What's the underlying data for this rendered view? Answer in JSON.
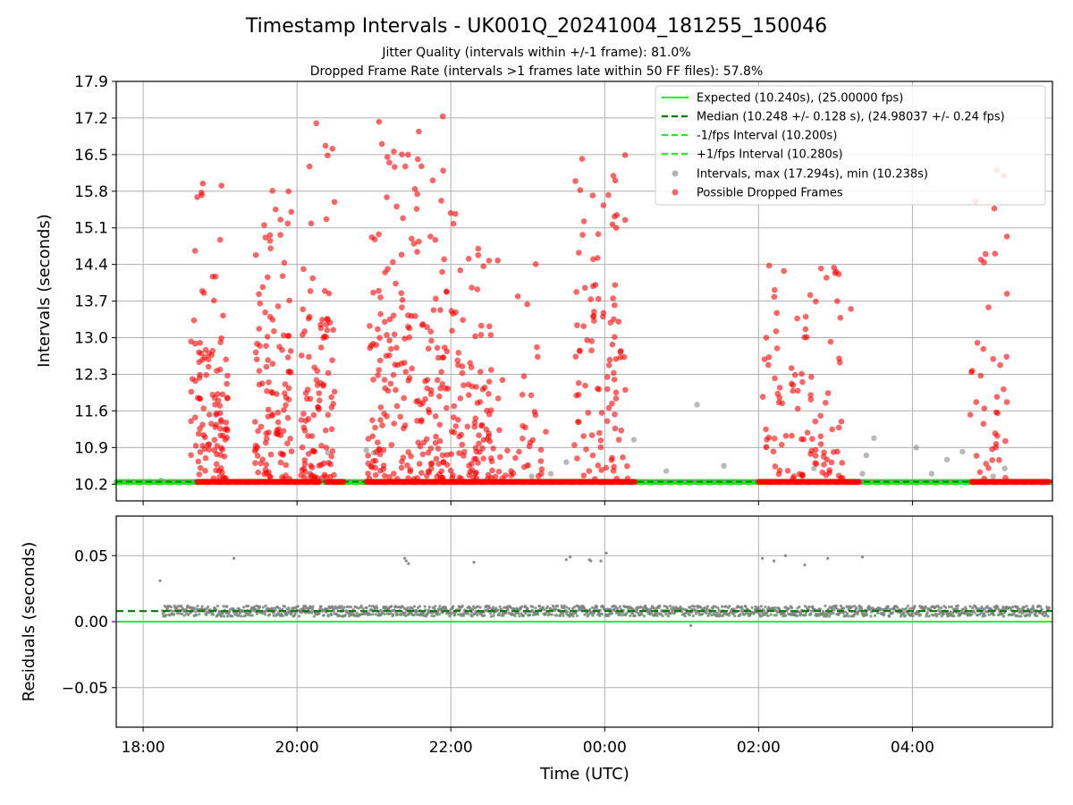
{
  "figure": {
    "title": "Timestamp Intervals - UK001Q_20241004_181255_150046",
    "subtitle_1": "Jitter Quality (intervals within +/-1 frame): 81.0%",
    "subtitle_2": "Dropped Frame Rate (intervals >1 frames late within 50 FF files): 57.8%"
  },
  "colors": {
    "expected": "#00ff00",
    "median": "#007a00",
    "intervals": "#808080",
    "dropped": "#ff0000",
    "grid": "#b0b0b0"
  },
  "chart_data": [
    {
      "type": "scatter",
      "name": "intervals",
      "ylabel": "Intervals (seconds)",
      "xlabel": "",
      "x_ticks": [
        "18:00",
        "20:00",
        "22:00",
        "00:00",
        "02:00",
        "04:00"
      ],
      "x_tick_hours": [
        18,
        20,
        22,
        24,
        26,
        28
      ],
      "xlim_hours": [
        17.65,
        29.82
      ],
      "y_ticks": [
        "10.2",
        "10.9",
        "11.6",
        "12.3",
        "13.0",
        "13.7",
        "14.4",
        "15.1",
        "15.8",
        "16.5",
        "17.2",
        "17.9"
      ],
      "ylim": [
        9.88,
        17.9
      ],
      "grid": true,
      "legend_position": "top-right",
      "legend": [
        "Expected (10.240s), (25.00000 fps)",
        "Median (10.248 +/- 0.128 s), (24.98037 +/- 0.24 fps)",
        "-1/fps Interval (10.200s)",
        "+1/fps Interval (10.280s)",
        "Intervals, max (17.294s), min (10.238s)",
        "Possible Dropped Frames"
      ],
      "lines": {
        "expected": 10.24,
        "median": 10.248,
        "minus_one_fps": 10.2,
        "plus_one_fps": 10.28
      },
      "baseline_value": 10.245,
      "baseline_intervals_hours": [
        [
          17.65,
          18.8
        ],
        [
          20.4,
          21.2
        ],
        [
          22.5,
          23.2
        ],
        [
          24.4,
          26.0
        ],
        [
          27.3,
          28.8
        ]
      ],
      "baseline_dropped_hours": [
        [
          18.7,
          20.3
        ],
        [
          20.38,
          20.62
        ],
        [
          20.9,
          24.4
        ],
        [
          26.0,
          27.32
        ],
        [
          28.77,
          29.78
        ]
      ],
      "grey_points": [
        [
          18.23,
          10.27
        ],
        [
          19.25,
          10.25
        ],
        [
          20.9,
          10.85
        ],
        [
          20.4,
          10.8
        ],
        [
          21.0,
          10.8
        ],
        [
          23.0,
          10.55
        ],
        [
          23.3,
          10.4
        ],
        [
          23.5,
          10.62
        ],
        [
          23.05,
          10.35
        ],
        [
          24.38,
          11.05
        ],
        [
          24.8,
          10.45
        ],
        [
          25.2,
          11.72
        ],
        [
          25.55,
          10.55
        ],
        [
          26.1,
          10.9
        ],
        [
          26.72,
          10.5
        ],
        [
          27.35,
          10.4
        ],
        [
          27.4,
          10.75
        ],
        [
          27.5,
          11.08
        ],
        [
          28.05,
          10.9
        ],
        [
          28.25,
          10.4
        ],
        [
          28.45,
          10.67
        ],
        [
          28.65,
          10.82
        ],
        [
          29.05,
          10.35
        ],
        [
          29.2,
          10.5
        ]
      ],
      "dropped_clusters": [
        {
          "start": 18.62,
          "end": 19.1,
          "n": 110,
          "median_ymax": 13.0,
          "ymax": 16.8
        },
        {
          "start": 19.45,
          "end": 19.93,
          "n": 110,
          "median_ymax": 13.2,
          "ymax": 15.9
        },
        {
          "start": 20.05,
          "end": 20.5,
          "n": 100,
          "median_ymax": 13.5,
          "ymax": 17.05
        },
        {
          "start": 20.92,
          "end": 22.1,
          "n": 230,
          "median_ymax": 13.6,
          "ymax": 17.25
        },
        {
          "start": 22.1,
          "end": 22.55,
          "n": 80,
          "median_ymax": 12.6,
          "ymax": 14.9
        },
        {
          "start": 22.55,
          "end": 23.25,
          "n": 40,
          "median_ymax": 12.2,
          "ymax": 14.5
        },
        {
          "start": 23.6,
          "end": 24.3,
          "n": 100,
          "median_ymax": 13.5,
          "ymax": 16.7
        },
        {
          "start": 26.05,
          "end": 26.7,
          "n": 60,
          "median_ymax": 12.3,
          "ymax": 14.4
        },
        {
          "start": 26.7,
          "end": 27.1,
          "n": 40,
          "median_ymax": 12.4,
          "ymax": 14.4
        },
        {
          "start": 28.75,
          "end": 29.25,
          "n": 40,
          "median_ymax": 12.5,
          "ymax": 16.2
        }
      ],
      "dropped_outliers": [
        [
          29.1,
          16.2
        ],
        [
          28.95,
          14.6
        ],
        [
          27.2,
          13.55
        ],
        [
          24.15,
          15.1
        ],
        [
          23.85,
          14.5
        ],
        [
          26.1,
          13.0
        ],
        [
          21.2,
          16.35
        ],
        [
          20.25,
          17.1
        ]
      ]
    },
    {
      "type": "scatter",
      "name": "residuals",
      "ylabel": "Residuals (seconds)",
      "xlabel": "Time (UTC)",
      "x_ticks": [
        "18:00",
        "20:00",
        "22:00",
        "00:00",
        "02:00",
        "04:00"
      ],
      "x_tick_hours": [
        18,
        20,
        22,
        24,
        26,
        28
      ],
      "xlim_hours": [
        17.65,
        29.82
      ],
      "y_ticks": [
        "0.05",
        "0.00",
        "−0.05"
      ],
      "y_tick_values": [
        0.05,
        0.0,
        -0.05
      ],
      "ylim": [
        -0.08,
        0.08
      ],
      "grid": true,
      "expected_line": 0.0,
      "median_line": 0.008,
      "residual_band": {
        "start": 18.25,
        "end": 29.78,
        "center": 0.008,
        "spread": 0.004
      },
      "outliers": [
        [
          18.22,
          0.031
        ],
        [
          19.18,
          0.048
        ],
        [
          21.4,
          0.048
        ],
        [
          21.45,
          0.044
        ],
        [
          21.42,
          0.046
        ],
        [
          22.3,
          0.045
        ],
        [
          23.5,
          0.047
        ],
        [
          23.55,
          0.049
        ],
        [
          23.8,
          0.047
        ],
        [
          23.82,
          0.046
        ],
        [
          23.95,
          0.046
        ],
        [
          24.02,
          0.052
        ],
        [
          26.05,
          0.048
        ],
        [
          26.2,
          0.046
        ],
        [
          26.35,
          0.05
        ],
        [
          26.6,
          0.043
        ],
        [
          26.9,
          0.048
        ],
        [
          27.35,
          0.049
        ],
        [
          25.12,
          -0.003
        ]
      ]
    }
  ]
}
